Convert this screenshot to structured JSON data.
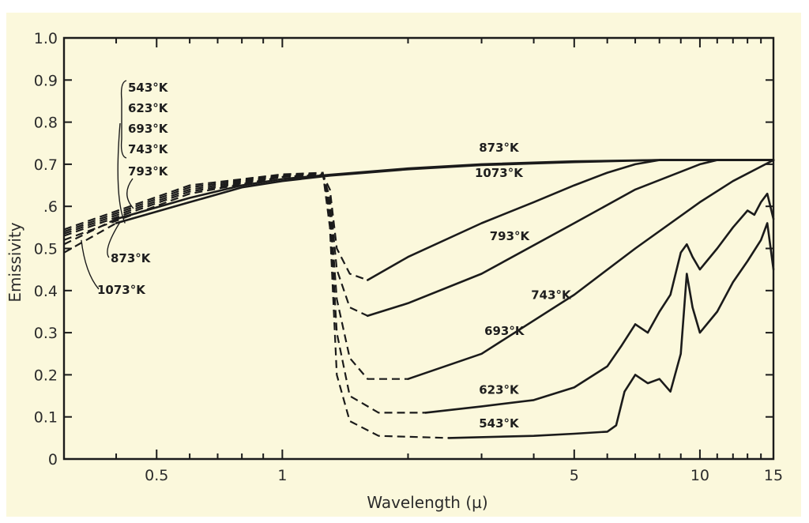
{
  "chart_data": {
    "type": "line",
    "title": "",
    "xlabel": "Wavelength (µ)",
    "ylabel": "Emissivity",
    "xscale": "log",
    "xlim": [
      0.3,
      15
    ],
    "ylim": [
      0,
      1.0
    ],
    "grid": false,
    "x_ticks": [
      {
        "value": 0.5,
        "label": "0.5"
      },
      {
        "value": 1,
        "label": "1"
      },
      {
        "value": 5,
        "label": "5"
      },
      {
        "value": 10,
        "label": "10"
      },
      {
        "value": 15,
        "label": "15"
      }
    ],
    "x_minor_ticks": [
      0.4,
      0.6,
      0.7,
      0.8,
      0.9,
      2,
      3,
      4,
      6,
      7,
      8,
      9,
      11,
      12,
      13,
      14
    ],
    "y_ticks": [
      {
        "value": 0,
        "label": "0"
      },
      {
        "value": 0.1,
        "label": "0.1"
      },
      {
        "value": 0.2,
        "label": "0.2"
      },
      {
        "value": 0.3,
        "label": "0.3"
      },
      {
        "value": 0.4,
        "label": "0.4"
      },
      {
        "value": 0.5,
        "label": "0.5"
      },
      {
        "value": 0.6,
        "label": ".6"
      },
      {
        "value": 0.7,
        "label": "0.7"
      },
      {
        "value": 0.8,
        "label": "0.8"
      },
      {
        "value": 0.9,
        "label": "0.9"
      },
      {
        "value": 1.0,
        "label": "1.0"
      }
    ],
    "series": [
      {
        "name": "873°K",
        "key": "k873",
        "label_at": [
          3.3,
          0.73
        ],
        "dashed": [
          [
            0.3,
            0.51
          ],
          [
            0.4,
            0.57
          ]
        ],
        "points": [
          [
            0.4,
            0.57
          ],
          [
            0.6,
            0.62
          ],
          [
            0.8,
            0.65
          ],
          [
            1.0,
            0.665
          ],
          [
            1.3,
            0.675
          ],
          [
            2,
            0.69
          ],
          [
            3,
            0.7
          ],
          [
            5,
            0.707
          ],
          [
            8,
            0.71
          ],
          [
            15,
            0.71
          ]
        ]
      },
      {
        "name": "1073°K",
        "key": "k1073",
        "label_at": [
          3.3,
          0.67
        ],
        "dashed": [
          [
            0.3,
            0.49
          ],
          [
            0.4,
            0.56
          ]
        ],
        "points": [
          [
            0.4,
            0.56
          ],
          [
            0.6,
            0.61
          ],
          [
            0.8,
            0.645
          ],
          [
            1.0,
            0.66
          ],
          [
            1.3,
            0.673
          ],
          [
            2,
            0.688
          ],
          [
            3,
            0.698
          ],
          [
            5,
            0.705
          ],
          [
            8,
            0.71
          ],
          [
            15,
            0.71
          ]
        ]
      },
      {
        "name": "793°K",
        "key": "k793",
        "label_at": [
          3.5,
          0.52
        ],
        "dashed": [
          [
            0.3,
            0.52
          ],
          [
            0.6,
            0.63
          ],
          [
            1.0,
            0.67
          ],
          [
            1.25,
            0.675
          ],
          [
            1.3,
            0.64
          ],
          [
            1.35,
            0.5
          ],
          [
            1.45,
            0.44
          ],
          [
            1.6,
            0.425
          ]
        ],
        "points": [
          [
            1.6,
            0.425
          ],
          [
            2,
            0.48
          ],
          [
            3,
            0.56
          ],
          [
            4,
            0.61
          ],
          [
            5,
            0.65
          ],
          [
            6,
            0.68
          ],
          [
            7,
            0.7
          ],
          [
            8,
            0.71
          ],
          [
            15,
            0.71
          ]
        ]
      },
      {
        "name": "743°K",
        "key": "k743",
        "label_at": [
          4.4,
          0.38
        ],
        "dashed": [
          [
            0.3,
            0.53
          ],
          [
            0.6,
            0.635
          ],
          [
            1.0,
            0.67
          ],
          [
            1.25,
            0.676
          ],
          [
            1.3,
            0.62
          ],
          [
            1.35,
            0.45
          ],
          [
            1.45,
            0.36
          ],
          [
            1.6,
            0.34
          ]
        ],
        "points": [
          [
            1.6,
            0.34
          ],
          [
            2,
            0.37
          ],
          [
            3,
            0.44
          ],
          [
            5,
            0.56
          ],
          [
            7,
            0.64
          ],
          [
            10,
            0.7
          ],
          [
            11,
            0.71
          ],
          [
            15,
            0.71
          ]
        ]
      },
      {
        "name": "693°K",
        "key": "k693",
        "label_at": [
          3.4,
          0.295
        ],
        "dashed": [
          [
            0.3,
            0.535
          ],
          [
            0.6,
            0.64
          ],
          [
            1.0,
            0.672
          ],
          [
            1.25,
            0.677
          ],
          [
            1.3,
            0.6
          ],
          [
            1.35,
            0.38
          ],
          [
            1.45,
            0.24
          ],
          [
            1.6,
            0.19
          ],
          [
            2,
            0.19
          ]
        ],
        "points": [
          [
            2,
            0.19
          ],
          [
            3,
            0.25
          ],
          [
            5,
            0.39
          ],
          [
            7,
            0.5
          ],
          [
            10,
            0.61
          ],
          [
            12,
            0.66
          ],
          [
            15,
            0.71
          ]
        ]
      },
      {
        "name": "623°K",
        "key": "k623",
        "label_at": [
          3.3,
          0.155
        ],
        "dashed": [
          [
            0.3,
            0.54
          ],
          [
            0.6,
            0.645
          ],
          [
            1.0,
            0.674
          ],
          [
            1.25,
            0.678
          ],
          [
            1.3,
            0.58
          ],
          [
            1.35,
            0.3
          ],
          [
            1.45,
            0.15
          ],
          [
            1.7,
            0.11
          ],
          [
            2.2,
            0.11
          ]
        ],
        "points": [
          [
            2.2,
            0.11
          ],
          [
            3,
            0.125
          ],
          [
            4,
            0.14
          ],
          [
            5,
            0.17
          ],
          [
            6,
            0.22
          ],
          [
            6.5,
            0.27
          ],
          [
            7,
            0.32
          ],
          [
            7.5,
            0.3
          ],
          [
            8,
            0.35
          ],
          [
            8.5,
            0.39
          ],
          [
            9,
            0.49
          ],
          [
            9.3,
            0.51
          ],
          [
            9.6,
            0.48
          ],
          [
            10,
            0.45
          ],
          [
            11,
            0.5
          ],
          [
            12,
            0.55
          ],
          [
            13,
            0.59
          ],
          [
            13.5,
            0.58
          ],
          [
            14,
            0.61
          ],
          [
            14.5,
            0.63
          ],
          [
            15,
            0.57
          ]
        ]
      },
      {
        "name": "543°K",
        "key": "k543",
        "label_at": [
          3.3,
          0.075
        ],
        "dashed": [
          [
            0.3,
            0.545
          ],
          [
            0.6,
            0.65
          ],
          [
            1.0,
            0.676
          ],
          [
            1.25,
            0.68
          ],
          [
            1.3,
            0.55
          ],
          [
            1.35,
            0.2
          ],
          [
            1.45,
            0.09
          ],
          [
            1.7,
            0.055
          ],
          [
            2.5,
            0.05
          ]
        ],
        "points": [
          [
            2.5,
            0.05
          ],
          [
            4,
            0.055
          ],
          [
            5,
            0.06
          ],
          [
            6,
            0.065
          ],
          [
            6.3,
            0.08
          ],
          [
            6.6,
            0.16
          ],
          [
            7,
            0.2
          ],
          [
            7.5,
            0.18
          ],
          [
            8,
            0.19
          ],
          [
            8.5,
            0.16
          ],
          [
            9,
            0.25
          ],
          [
            9.3,
            0.44
          ],
          [
            9.6,
            0.36
          ],
          [
            10,
            0.3
          ],
          [
            11,
            0.35
          ],
          [
            12,
            0.42
          ],
          [
            13,
            0.47
          ],
          [
            14,
            0.52
          ],
          [
            14.5,
            0.56
          ],
          [
            15,
            0.45
          ]
        ]
      }
    ],
    "annotations": {
      "bracket_labels": [
        "543°K",
        "623°K",
        "693°K",
        "743°K"
      ],
      "left_793": "793°K",
      "left_873": "873°K",
      "left_1073": "1073°K"
    }
  }
}
